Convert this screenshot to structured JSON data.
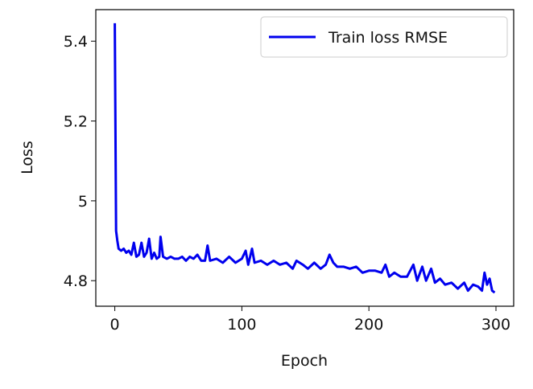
{
  "chart_data": {
    "type": "line",
    "x_label": "Epoch",
    "y_label": "Loss",
    "legend": "upper right",
    "series": [
      {
        "name": "Train loss RMSE",
        "color": "#0000ee",
        "x": [
          0,
          1,
          2,
          3,
          5,
          7,
          9,
          11,
          13,
          15,
          17,
          19,
          21,
          23,
          25,
          27,
          29,
          31,
          33,
          35,
          36,
          38,
          41,
          44,
          47,
          50,
          53,
          56,
          59,
          62,
          65,
          68,
          71,
          73,
          75,
          80,
          85,
          90,
          95,
          100,
          103,
          105,
          108,
          110,
          115,
          120,
          125,
          130,
          135,
          140,
          143,
          148,
          152,
          157,
          162,
          166,
          169,
          172,
          175,
          180,
          185,
          190,
          195,
          200,
          205,
          210,
          213,
          216,
          220,
          225,
          230,
          235,
          238,
          242,
          245,
          249,
          252,
          256,
          260,
          265,
          270,
          275,
          278,
          282,
          286,
          289,
          291,
          293,
          295,
          297,
          299
        ],
        "values": [
          5.445,
          4.925,
          4.9,
          4.88,
          4.875,
          4.88,
          4.87,
          4.875,
          4.865,
          4.895,
          4.86,
          4.865,
          4.895,
          4.86,
          4.87,
          4.905,
          4.855,
          4.87,
          4.855,
          4.86,
          4.91,
          4.86,
          4.855,
          4.86,
          4.855,
          4.855,
          4.86,
          4.85,
          4.86,
          4.855,
          4.865,
          4.85,
          4.85,
          4.888,
          4.85,
          4.855,
          4.845,
          4.86,
          4.845,
          4.855,
          4.875,
          4.84,
          4.88,
          4.845,
          4.85,
          4.84,
          4.85,
          4.84,
          4.845,
          4.83,
          4.85,
          4.84,
          4.83,
          4.845,
          4.83,
          4.84,
          4.865,
          4.845,
          4.835,
          4.835,
          4.83,
          4.835,
          4.82,
          4.825,
          4.825,
          4.82,
          4.84,
          4.81,
          4.82,
          4.81,
          4.81,
          4.84,
          4.8,
          4.835,
          4.8,
          4.83,
          4.795,
          4.805,
          4.79,
          4.795,
          4.78,
          4.795,
          4.775,
          4.79,
          4.785,
          4.775,
          4.82,
          4.79,
          4.805,
          4.775,
          4.77
        ]
      }
    ],
    "xlim": [
      -14.95,
      313.95
    ],
    "xticks": [
      0,
      100,
      200,
      300
    ],
    "ylim": [
      4.736,
      5.479
    ],
    "yticks": [
      4.8,
      5.0,
      5.2,
      5.4
    ]
  }
}
